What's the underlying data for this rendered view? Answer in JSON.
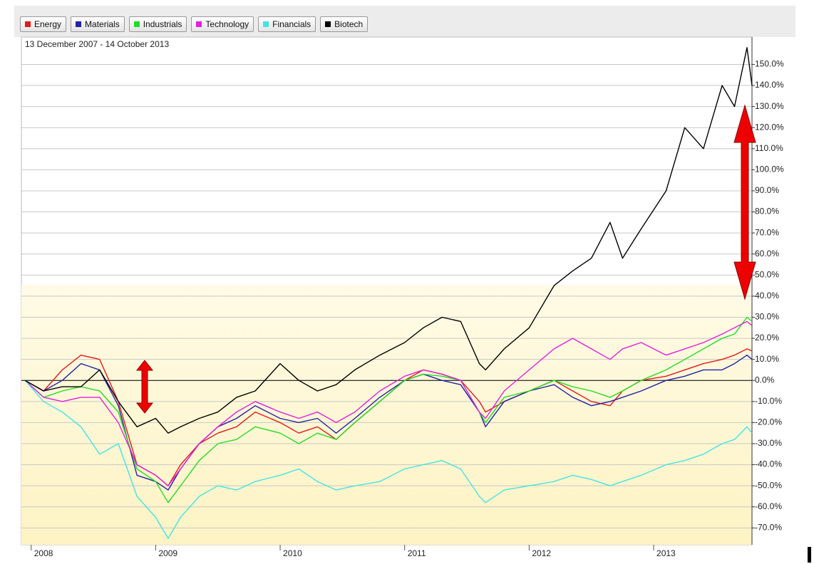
{
  "chart_data": {
    "type": "line",
    "subtitle": "13 December 2007 - 14 October 2013",
    "x": [
      2007.95,
      2008.1,
      2008.25,
      2008.4,
      2008.55,
      2008.7,
      2008.85,
      2009.0,
      2009.1,
      2009.2,
      2009.35,
      2009.5,
      2009.65,
      2009.8,
      2010.0,
      2010.15,
      2010.3,
      2010.45,
      2010.6,
      2010.8,
      2011.0,
      2011.15,
      2011.3,
      2011.45,
      2011.6,
      2011.65,
      2011.8,
      2012.0,
      2012.2,
      2012.35,
      2012.5,
      2012.65,
      2012.75,
      2012.9,
      2013.1,
      2013.25,
      2013.4,
      2013.55,
      2013.65,
      2013.75,
      2013.79
    ],
    "xlim": [
      2007.95,
      2013.79
    ],
    "xticks": [
      2008,
      2009,
      2010,
      2011,
      2012,
      2013
    ],
    "ylim": [
      -78,
      163
    ],
    "yticks": [
      {
        "value": -70,
        "label": "-70.0%"
      },
      {
        "value": -60,
        "label": "-60.0%"
      },
      {
        "value": -50,
        "label": "-50.0%"
      },
      {
        "value": -40,
        "label": "-40.0%"
      },
      {
        "value": -30,
        "label": "-30.0%"
      },
      {
        "value": -20,
        "label": "-20.0%"
      },
      {
        "value": -10,
        "label": "-10.0%"
      },
      {
        "value": 0,
        "label": "0.0%"
      },
      {
        "value": 10,
        "label": "10.0%"
      },
      {
        "value": 20,
        "label": "20.0%"
      },
      {
        "value": 30,
        "label": "30.0%"
      },
      {
        "value": 40,
        "label": "40.0%"
      },
      {
        "value": 50,
        "label": "50.0%"
      },
      {
        "value": 60,
        "label": "60.0%"
      },
      {
        "value": 70,
        "label": "70.0%"
      },
      {
        "value": 80,
        "label": "80.0%"
      },
      {
        "value": 90,
        "label": "90.0%"
      },
      {
        "value": 100,
        "label": "100.0%"
      },
      {
        "value": 110,
        "label": "110.0%"
      },
      {
        "value": 120,
        "label": "120.0%"
      },
      {
        "value": 130,
        "label": "130.0%"
      },
      {
        "value": 140,
        "label": "140.0%"
      },
      {
        "value": 150,
        "label": "150.0%"
      }
    ],
    "grid": true,
    "legend": "top-left",
    "series": [
      {
        "name": "Energy",
        "color": "#e41a1a",
        "values": [
          0,
          -5,
          5,
          12,
          10,
          -10,
          -40,
          -45,
          -50,
          -40,
          -30,
          -25,
          -22,
          -15,
          -20,
          -25,
          -22,
          -28,
          -20,
          -10,
          0,
          5,
          3,
          0,
          -10,
          -15,
          -10,
          -5,
          0,
          -5,
          -10,
          -12,
          -5,
          0,
          2,
          5,
          8,
          10,
          12,
          15,
          14
        ]
      },
      {
        "name": "Materials",
        "color": "#2222a8",
        "values": [
          0,
          -5,
          0,
          8,
          5,
          -12,
          -45,
          -48,
          -52,
          -42,
          -30,
          -22,
          -18,
          -12,
          -18,
          -20,
          -18,
          -25,
          -18,
          -8,
          0,
          3,
          0,
          -2,
          -15,
          -22,
          -10,
          -5,
          -2,
          -8,
          -12,
          -10,
          -8,
          -5,
          0,
          2,
          5,
          5,
          8,
          12,
          10
        ]
      },
      {
        "name": "Industrials",
        "color": "#22dd22",
        "values": [
          0,
          -8,
          -5,
          -3,
          -5,
          -15,
          -42,
          -48,
          -58,
          -50,
          -38,
          -30,
          -28,
          -22,
          -25,
          -30,
          -25,
          -28,
          -20,
          -10,
          0,
          3,
          2,
          0,
          -15,
          -20,
          -8,
          -5,
          0,
          -3,
          -5,
          -8,
          -5,
          0,
          5,
          10,
          15,
          20,
          22,
          30,
          28
        ]
      },
      {
        "name": "Technology",
        "color": "#e020e0",
        "values": [
          0,
          -8,
          -10,
          -8,
          -8,
          -20,
          -40,
          -45,
          -50,
          -42,
          -30,
          -22,
          -15,
          -10,
          -15,
          -18,
          -15,
          -20,
          -15,
          -5,
          2,
          5,
          3,
          0,
          -15,
          -18,
          -5,
          5,
          15,
          20,
          15,
          10,
          15,
          18,
          12,
          15,
          18,
          22,
          25,
          28,
          26
        ]
      },
      {
        "name": "Financials",
        "color": "#44e4e4",
        "values": [
          0,
          -10,
          -15,
          -22,
          -35,
          -30,
          -55,
          -65,
          -75,
          -65,
          -55,
          -50,
          -52,
          -48,
          -45,
          -42,
          -48,
          -52,
          -50,
          -48,
          -42,
          -40,
          -38,
          -42,
          -55,
          -58,
          -52,
          -50,
          -48,
          -45,
          -47,
          -50,
          -48,
          -45,
          -40,
          -38,
          -35,
          -30,
          -28,
          -22,
          -25
        ]
      },
      {
        "name": "Biotech",
        "color": "#000000",
        "values": [
          0,
          -5,
          -3,
          -3,
          5,
          -10,
          -22,
          -18,
          -25,
          -22,
          -18,
          -15,
          -8,
          -5,
          8,
          0,
          -5,
          -2,
          5,
          12,
          18,
          25,
          30,
          28,
          8,
          5,
          15,
          25,
          45,
          52,
          58,
          75,
          58,
          72,
          90,
          120,
          110,
          140,
          130,
          158,
          140
        ]
      }
    ]
  }
}
